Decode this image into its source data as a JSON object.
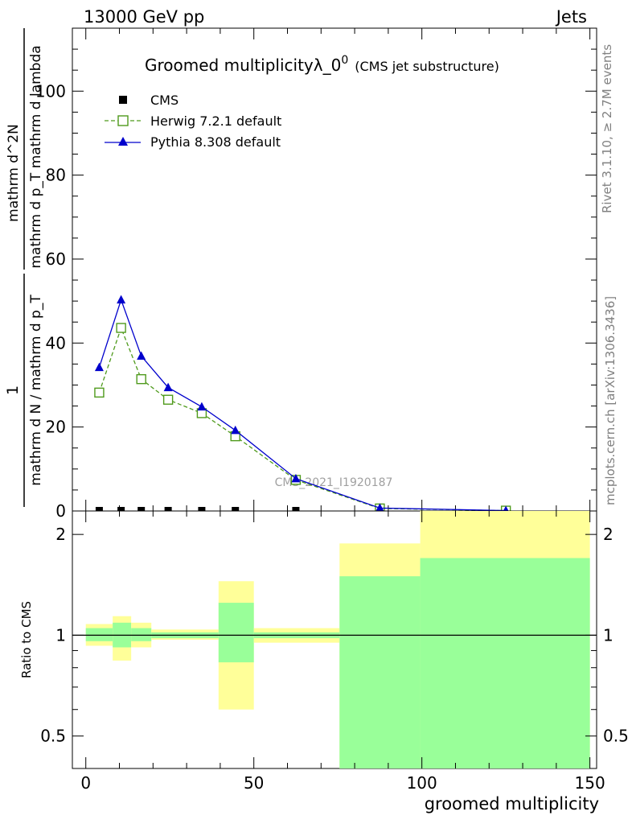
{
  "header": {
    "left": "13000 GeV pp",
    "right": "Jets"
  },
  "title": {
    "main": "Groomed multiplicity",
    "lambda": "λ_0",
    "superscript": "0",
    "sub": "(CMS jet substructure)"
  },
  "side_labels": {
    "rivet": "Rivet 3.1.10, ≥ 2.7M events",
    "mcplots": "mcplots.cern.ch [arXiv:1306.3436]"
  },
  "watermark": "CMS_2021_I1920187",
  "ylabel_main": {
    "numerator": "1",
    "denominator": "mathrm d N / mathrm d p_T",
    "right_numerator": "mathrm d^2N",
    "right_denominator": "mathrm d p_T mathrm d lambda"
  },
  "chart_data": [
    {
      "type": "line",
      "xlim": [
        -4,
        152
      ],
      "ylim": [
        0,
        115
      ],
      "yticks": [
        0,
        20,
        40,
        60,
        80,
        100
      ],
      "legend_position": "top-left",
      "series": [
        {
          "name": "CMS",
          "marker": "square-filled",
          "color": "#000000",
          "x": [
            4,
            10.5,
            16.5,
            24.5,
            34.5,
            44.5,
            62.5,
            87.5,
            125
          ],
          "y": [
            0.1,
            0.1,
            0.1,
            0.1,
            0.1,
            0.1,
            0.1,
            0.05,
            0.02
          ]
        },
        {
          "name": "Herwig 7.2.1 default",
          "marker": "square-open",
          "line": "dashed",
          "color": "#4f9a1c",
          "x": [
            4,
            10.5,
            16.5,
            24.5,
            34.5,
            44.5,
            62.5,
            87.5,
            125
          ],
          "y": [
            28.2,
            43.6,
            31.4,
            26.5,
            23.3,
            17.8,
            7.4,
            0.6,
            0.08
          ]
        },
        {
          "name": "Pythia 8.308 default",
          "marker": "triangle-filled",
          "line": "solid",
          "color": "#0000cc",
          "x": [
            4,
            10.5,
            16.5,
            24.5,
            34.5,
            44.5,
            62.5,
            87.5,
            125
          ],
          "y": [
            34.2,
            50.3,
            36.9,
            29.4,
            24.8,
            19.2,
            7.7,
            0.7,
            0.1
          ]
        }
      ]
    },
    {
      "type": "area",
      "ylabel": "Ratio to CMS",
      "xlabel": "groomed multiplicity",
      "xlim": [
        -4,
        152
      ],
      "xticks": [
        0,
        50,
        100,
        150
      ],
      "yscale": "log",
      "ylim": [
        0.4,
        2.35
      ],
      "yticks": [
        0.5,
        1,
        2
      ],
      "reference_line": 1,
      "bands": [
        {
          "x0": 0,
          "x1": 8,
          "yellow": [
            0.93,
            1.08
          ],
          "green": [
            0.96,
            1.05
          ]
        },
        {
          "x0": 8,
          "x1": 13.5,
          "yellow": [
            0.84,
            1.14
          ],
          "green": [
            0.92,
            1.09
          ]
        },
        {
          "x0": 13.5,
          "x1": 19.5,
          "yellow": [
            0.92,
            1.09
          ],
          "green": [
            0.96,
            1.05
          ]
        },
        {
          "x0": 19.5,
          "x1": 39.5,
          "yellow": [
            0.97,
            1.04
          ],
          "green": [
            0.98,
            1.02
          ]
        },
        {
          "x0": 39.5,
          "x1": 50,
          "yellow": [
            0.6,
            1.45
          ],
          "green": [
            0.83,
            1.25
          ]
        },
        {
          "x0": 50,
          "x1": 75.5,
          "yellow": [
            0.95,
            1.05
          ],
          "green": [
            0.98,
            1.02
          ]
        },
        {
          "x0": 75.5,
          "x1": 99.5,
          "yellow": [
            0.4,
            1.88
          ],
          "green": [
            0.4,
            1.5
          ]
        },
        {
          "x0": 99.5,
          "x1": 150,
          "yellow": [
            0.4,
            2.35
          ],
          "green": [
            0.4,
            1.7
          ]
        }
      ]
    }
  ]
}
